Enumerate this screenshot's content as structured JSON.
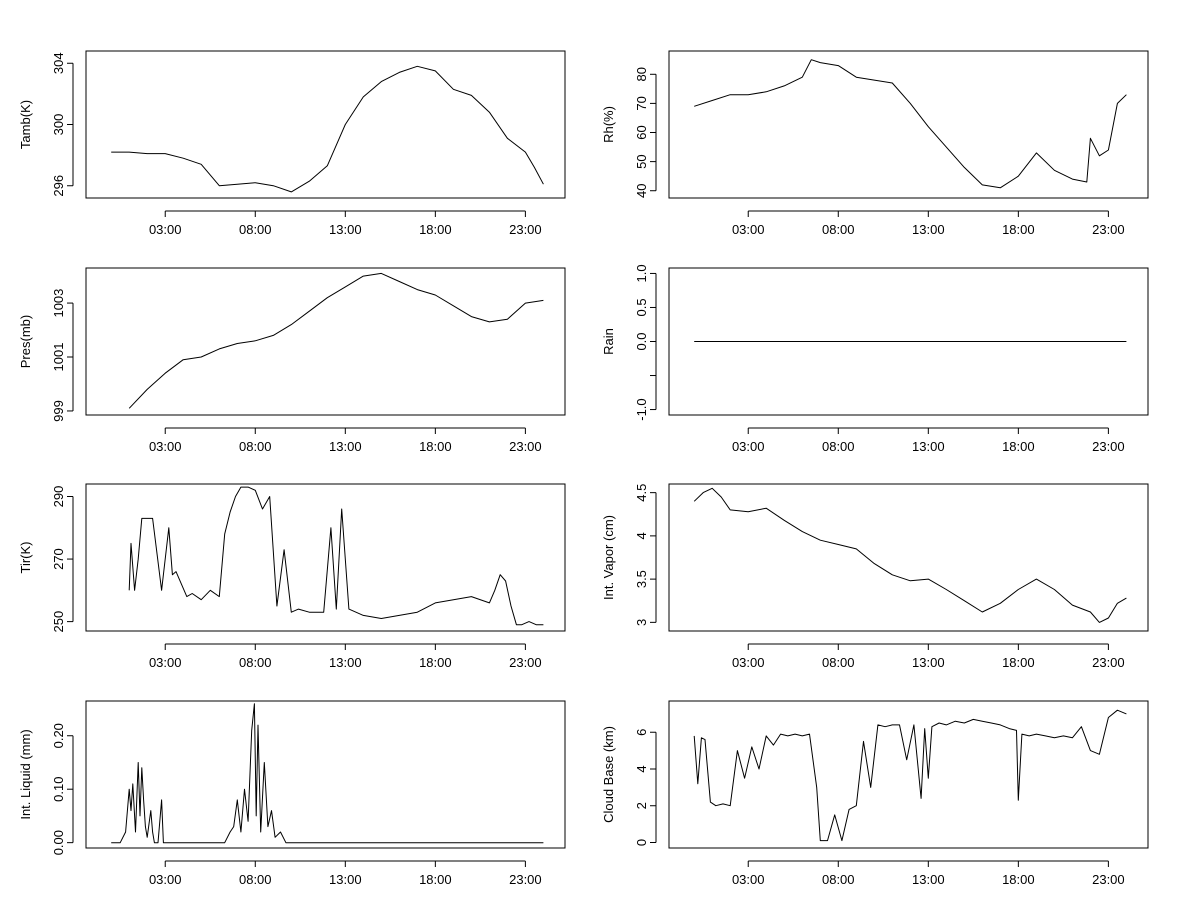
{
  "chart_data": [
    {
      "type": "line",
      "ylabel": "Tamb(K)",
      "xlim": [
        -1.4,
        25.2
      ],
      "ylim": [
        295.2,
        304.8
      ],
      "yticks": [
        296,
        300,
        304
      ],
      "xticks": [
        3,
        8,
        13,
        18,
        23
      ],
      "xtick_labels": [
        "03:00",
        "08:00",
        "13:00",
        "18:00",
        "23:00"
      ],
      "x": [
        0,
        1,
        2,
        3,
        4,
        5,
        6,
        7,
        8,
        9,
        10,
        11,
        12,
        13,
        14,
        15,
        16,
        17,
        18,
        19,
        20,
        21,
        22,
        23,
        23.5,
        24
      ],
      "y": [
        298.2,
        298.2,
        298.1,
        298.1,
        297.8,
        297.4,
        296.0,
        296.1,
        296.2,
        296.0,
        295.6,
        296.3,
        297.3,
        300.0,
        301.8,
        302.8,
        303.4,
        303.8,
        303.5,
        302.3,
        301.9,
        300.8,
        299.1,
        298.2,
        297.2,
        296.1
      ]
    },
    {
      "type": "line",
      "ylabel": "Rh(%)",
      "xlim": [
        -1.4,
        25.2
      ],
      "ylim": [
        37.5,
        88
      ],
      "yticks": [
        40,
        50,
        60,
        70,
        80
      ],
      "xticks": [
        3,
        8,
        13,
        18,
        23
      ],
      "xtick_labels": [
        "03:00",
        "08:00",
        "13:00",
        "18:00",
        "23:00"
      ],
      "x": [
        0,
        1,
        2,
        3,
        4,
        5,
        6,
        6.5,
        7,
        8,
        9,
        10,
        11,
        12,
        13,
        14,
        15,
        16,
        17,
        18,
        19,
        20,
        21,
        21.8,
        22,
        22.5,
        23,
        23.5,
        24
      ],
      "y": [
        69,
        71,
        73,
        73,
        74,
        76,
        79,
        85,
        84,
        83,
        79,
        78,
        77,
        70,
        62,
        55,
        48,
        42,
        41,
        45,
        53,
        47,
        44,
        43,
        58,
        52,
        54,
        70,
        73
      ]
    },
    {
      "type": "line",
      "ylabel": "Pres(mb)",
      "xlim": [
        -1.4,
        25.2
      ],
      "ylim": [
        998.85,
        1004.3
      ],
      "yticks": [
        999,
        1001,
        1003
      ],
      "xticks": [
        3,
        8,
        13,
        18,
        23
      ],
      "xtick_labels": [
        "03:00",
        "08:00",
        "13:00",
        "18:00",
        "23:00"
      ],
      "x": [
        1,
        2,
        3,
        4,
        5,
        6,
        7,
        8,
        9,
        10,
        11,
        12,
        13,
        14,
        15,
        16,
        17,
        18,
        19,
        20,
        21,
        22,
        23,
        24
      ],
      "y": [
        999.1,
        999.8,
        1000.4,
        1000.9,
        1001.0,
        1001.3,
        1001.5,
        1001.6,
        1001.8,
        1002.2,
        1002.7,
        1003.2,
        1003.6,
        1004.0,
        1004.1,
        1003.8,
        1003.5,
        1003.3,
        1002.9,
        1002.5,
        1002.3,
        1002.4,
        1003.0,
        1003.1
      ]
    },
    {
      "type": "line",
      "ylabel": "Rain",
      "xlim": [
        -1.4,
        25.2
      ],
      "ylim": [
        -1.08,
        1.08
      ],
      "yticks": [
        -1.0,
        -0.5,
        0.0,
        0.5,
        1.0
      ],
      "ytick_labels": [
        "-1.0",
        "",
        "0.0",
        "0.5",
        "1.0"
      ],
      "xticks": [
        3,
        8,
        13,
        18,
        23
      ],
      "xtick_labels": [
        "03:00",
        "08:00",
        "13:00",
        "18:00",
        "23:00"
      ],
      "x": [
        0,
        24
      ],
      "y": [
        0,
        0
      ]
    },
    {
      "type": "line",
      "ylabel": "Tir(K)",
      "xlim": [
        -1.4,
        25.2
      ],
      "ylim": [
        247,
        294
      ],
      "yticks": [
        250,
        270,
        290
      ],
      "xticks": [
        3,
        8,
        13,
        18,
        23
      ],
      "xtick_labels": [
        "03:00",
        "08:00",
        "13:00",
        "18:00",
        "23:00"
      ],
      "x": [
        1,
        1.1,
        1.3,
        1.5,
        1.7,
        1.9,
        2.3,
        2.8,
        3.2,
        3.4,
        3.6,
        3.9,
        4.2,
        4.5,
        5.0,
        5.5,
        6.0,
        6.3,
        6.6,
        6.9,
        7.2,
        7.6,
        8.0,
        8.4,
        8.8,
        9.2,
        9.6,
        10.0,
        10.4,
        11.0,
        11.8,
        12.2,
        12.5,
        12.8,
        13.2,
        14,
        15,
        16,
        17,
        18,
        19,
        20,
        21,
        21.3,
        21.6,
        21.9,
        22.2,
        22.5,
        22.8,
        23.2,
        23.6,
        24
      ],
      "y": [
        260,
        275,
        260,
        270,
        283,
        283,
        283,
        260,
        280,
        265,
        266,
        262,
        258,
        259,
        257,
        260,
        258,
        278,
        285,
        290,
        293,
        293,
        292,
        286,
        290,
        255,
        273,
        253,
        254,
        253,
        253,
        280,
        254,
        286,
        254,
        252,
        251,
        252,
        253,
        256,
        257,
        258,
        256,
        260,
        265,
        263,
        255,
        249,
        249,
        250,
        249,
        249
      ]
    },
    {
      "type": "line",
      "ylabel": "Int. Vapor (cm)",
      "xlim": [
        -1.4,
        25.2
      ],
      "ylim": [
        2.9,
        4.6
      ],
      "yticks": [
        3.0,
        3.5,
        4.0,
        4.5
      ],
      "xticks": [
        3,
        8,
        13,
        18,
        23
      ],
      "xtick_labels": [
        "03:00",
        "08:00",
        "13:00",
        "18:00",
        "23:00"
      ],
      "x": [
        0,
        0.5,
        1,
        1.5,
        2,
        3,
        4,
        5,
        6,
        7,
        8,
        9,
        10,
        11,
        12,
        13,
        14,
        15,
        16,
        17,
        18,
        19,
        20,
        21,
        22,
        22.5,
        23,
        23.5,
        24
      ],
      "y": [
        4.4,
        4.5,
        4.55,
        4.45,
        4.3,
        4.28,
        4.32,
        4.18,
        4.05,
        3.95,
        3.9,
        3.85,
        3.68,
        3.55,
        3.48,
        3.5,
        3.38,
        3.25,
        3.12,
        3.22,
        3.38,
        3.5,
        3.38,
        3.2,
        3.12,
        3.0,
        3.05,
        3.22,
        3.28
      ]
    },
    {
      "type": "line",
      "ylabel": "Int. Liquid (mm)",
      "xlim": [
        -1.4,
        25.2
      ],
      "ylim": [
        -0.01,
        0.265
      ],
      "yticks": [
        0.0,
        0.1,
        0.2
      ],
      "ytick_labels": [
        "0.00",
        "0.10",
        "0.20"
      ],
      "xticks": [
        3,
        8,
        13,
        18,
        23
      ],
      "xtick_labels": [
        "03:00",
        "08:00",
        "13:00",
        "18:00",
        "23:00"
      ],
      "x": [
        0,
        0.5,
        0.8,
        1.0,
        1.1,
        1.2,
        1.35,
        1.5,
        1.6,
        1.7,
        1.8,
        1.9,
        2.0,
        2.2,
        2.3,
        2.4,
        2.6,
        2.8,
        2.9,
        3.0,
        3.2,
        4,
        5,
        6.3,
        6.6,
        6.8,
        7.0,
        7.2,
        7.4,
        7.6,
        7.8,
        7.95,
        8.05,
        8.15,
        8.3,
        8.5,
        8.7,
        8.9,
        9.1,
        9.4,
        9.7,
        10,
        11,
        12,
        13,
        14,
        15,
        16,
        17,
        18,
        19,
        20,
        21,
        22,
        23,
        24
      ],
      "y": [
        0,
        0,
        0.02,
        0.1,
        0.06,
        0.11,
        0.02,
        0.15,
        0.05,
        0.14,
        0.08,
        0.03,
        0.01,
        0.06,
        0.02,
        0.0,
        0.0,
        0.08,
        0.0,
        0.0,
        0.0,
        0.0,
        0.0,
        0.0,
        0.02,
        0.03,
        0.08,
        0.02,
        0.1,
        0.04,
        0.21,
        0.26,
        0.05,
        0.22,
        0.02,
        0.15,
        0.03,
        0.06,
        0.01,
        0.02,
        0.0,
        0.0,
        0.0,
        0.0,
        0.0,
        0.0,
        0.0,
        0.0,
        0.0,
        0.0,
        0.0,
        0.0,
        0.0,
        0.0,
        0.0,
        0.0
      ]
    },
    {
      "type": "line",
      "ylabel": "Cloud Base (km)",
      "xlim": [
        -1.4,
        25.2
      ],
      "ylim": [
        -0.3,
        7.7
      ],
      "yticks": [
        0,
        2,
        4,
        6
      ],
      "xticks": [
        3,
        8,
        13,
        18,
        23
      ],
      "xtick_labels": [
        "03:00",
        "08:00",
        "13:00",
        "18:00",
        "23:00"
      ],
      "x": [
        0,
        0.2,
        0.4,
        0.6,
        0.9,
        1.2,
        1.6,
        2.0,
        2.4,
        2.8,
        3.2,
        3.6,
        4.0,
        4.4,
        4.8,
        5.2,
        5.6,
        6.0,
        6.4,
        6.8,
        7.0,
        7.4,
        7.8,
        8.2,
        8.6,
        9.0,
        9.4,
        9.8,
        10.2,
        10.6,
        11.0,
        11.4,
        11.8,
        12.2,
        12.6,
        12.8,
        13.0,
        13.2,
        13.6,
        14.0,
        14.5,
        15.0,
        15.5,
        16.0,
        16.5,
        17.0,
        17.5,
        17.9,
        18.0,
        18.2,
        18.6,
        19.0,
        19.5,
        20.0,
        20.5,
        21.0,
        21.5,
        22.0,
        22.5,
        23.0,
        23.5,
        24.0
      ],
      "y": [
        5.8,
        3.2,
        5.7,
        5.6,
        2.2,
        2.0,
        2.1,
        2.0,
        5.0,
        3.5,
        5.2,
        4.0,
        5.8,
        5.3,
        5.9,
        5.8,
        5.9,
        5.8,
        5.9,
        3.0,
        0.1,
        0.1,
        1.5,
        0.1,
        1.8,
        2.0,
        5.5,
        3.0,
        6.4,
        6.3,
        6.4,
        6.4,
        4.5,
        6.4,
        2.4,
        6.2,
        3.5,
        6.3,
        6.5,
        6.4,
        6.6,
        6.5,
        6.7,
        6.6,
        6.5,
        6.4,
        6.2,
        6.1,
        2.3,
        5.9,
        5.8,
        5.9,
        5.8,
        5.7,
        5.8,
        5.7,
        6.3,
        5.0,
        4.8,
        6.8,
        7.2,
        7.0
      ]
    }
  ]
}
